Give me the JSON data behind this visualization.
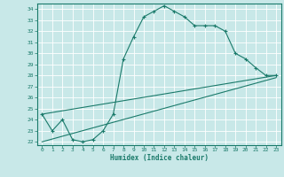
{
  "xlabel": "Humidex (Indice chaleur)",
  "bg_color": "#c8e8e8",
  "line_color": "#1a7a6a",
  "grid_color": "#b0d8d8",
  "xlim": [
    -0.5,
    23.5
  ],
  "ylim": [
    21.7,
    34.5
  ],
  "yticks": [
    22,
    23,
    24,
    25,
    26,
    27,
    28,
    29,
    30,
    31,
    32,
    33,
    34
  ],
  "xticks": [
    0,
    1,
    2,
    3,
    4,
    5,
    6,
    7,
    8,
    9,
    10,
    11,
    12,
    13,
    14,
    15,
    16,
    17,
    18,
    19,
    20,
    21,
    22,
    23
  ],
  "series": [
    [
      0,
      24.5
    ],
    [
      1,
      23.0
    ],
    [
      2,
      24.0
    ],
    [
      3,
      22.2
    ],
    [
      4,
      22.0
    ],
    [
      5,
      22.2
    ],
    [
      6,
      23.0
    ],
    [
      7,
      24.5
    ],
    [
      8,
      29.5
    ],
    [
      9,
      31.5
    ],
    [
      10,
      33.3
    ],
    [
      11,
      33.8
    ],
    [
      12,
      34.3
    ],
    [
      13,
      33.8
    ],
    [
      14,
      33.3
    ],
    [
      15,
      32.5
    ],
    [
      16,
      32.5
    ],
    [
      17,
      32.5
    ],
    [
      18,
      32.0
    ],
    [
      19,
      30.0
    ],
    [
      20,
      29.5
    ],
    [
      21,
      28.7
    ],
    [
      22,
      28.0
    ],
    [
      23,
      28.0
    ]
  ],
  "line2": [
    [
      0,
      24.5
    ],
    [
      23,
      28.0
    ]
  ],
  "line3": [
    [
      0,
      22.0
    ],
    [
      23,
      27.8
    ]
  ]
}
